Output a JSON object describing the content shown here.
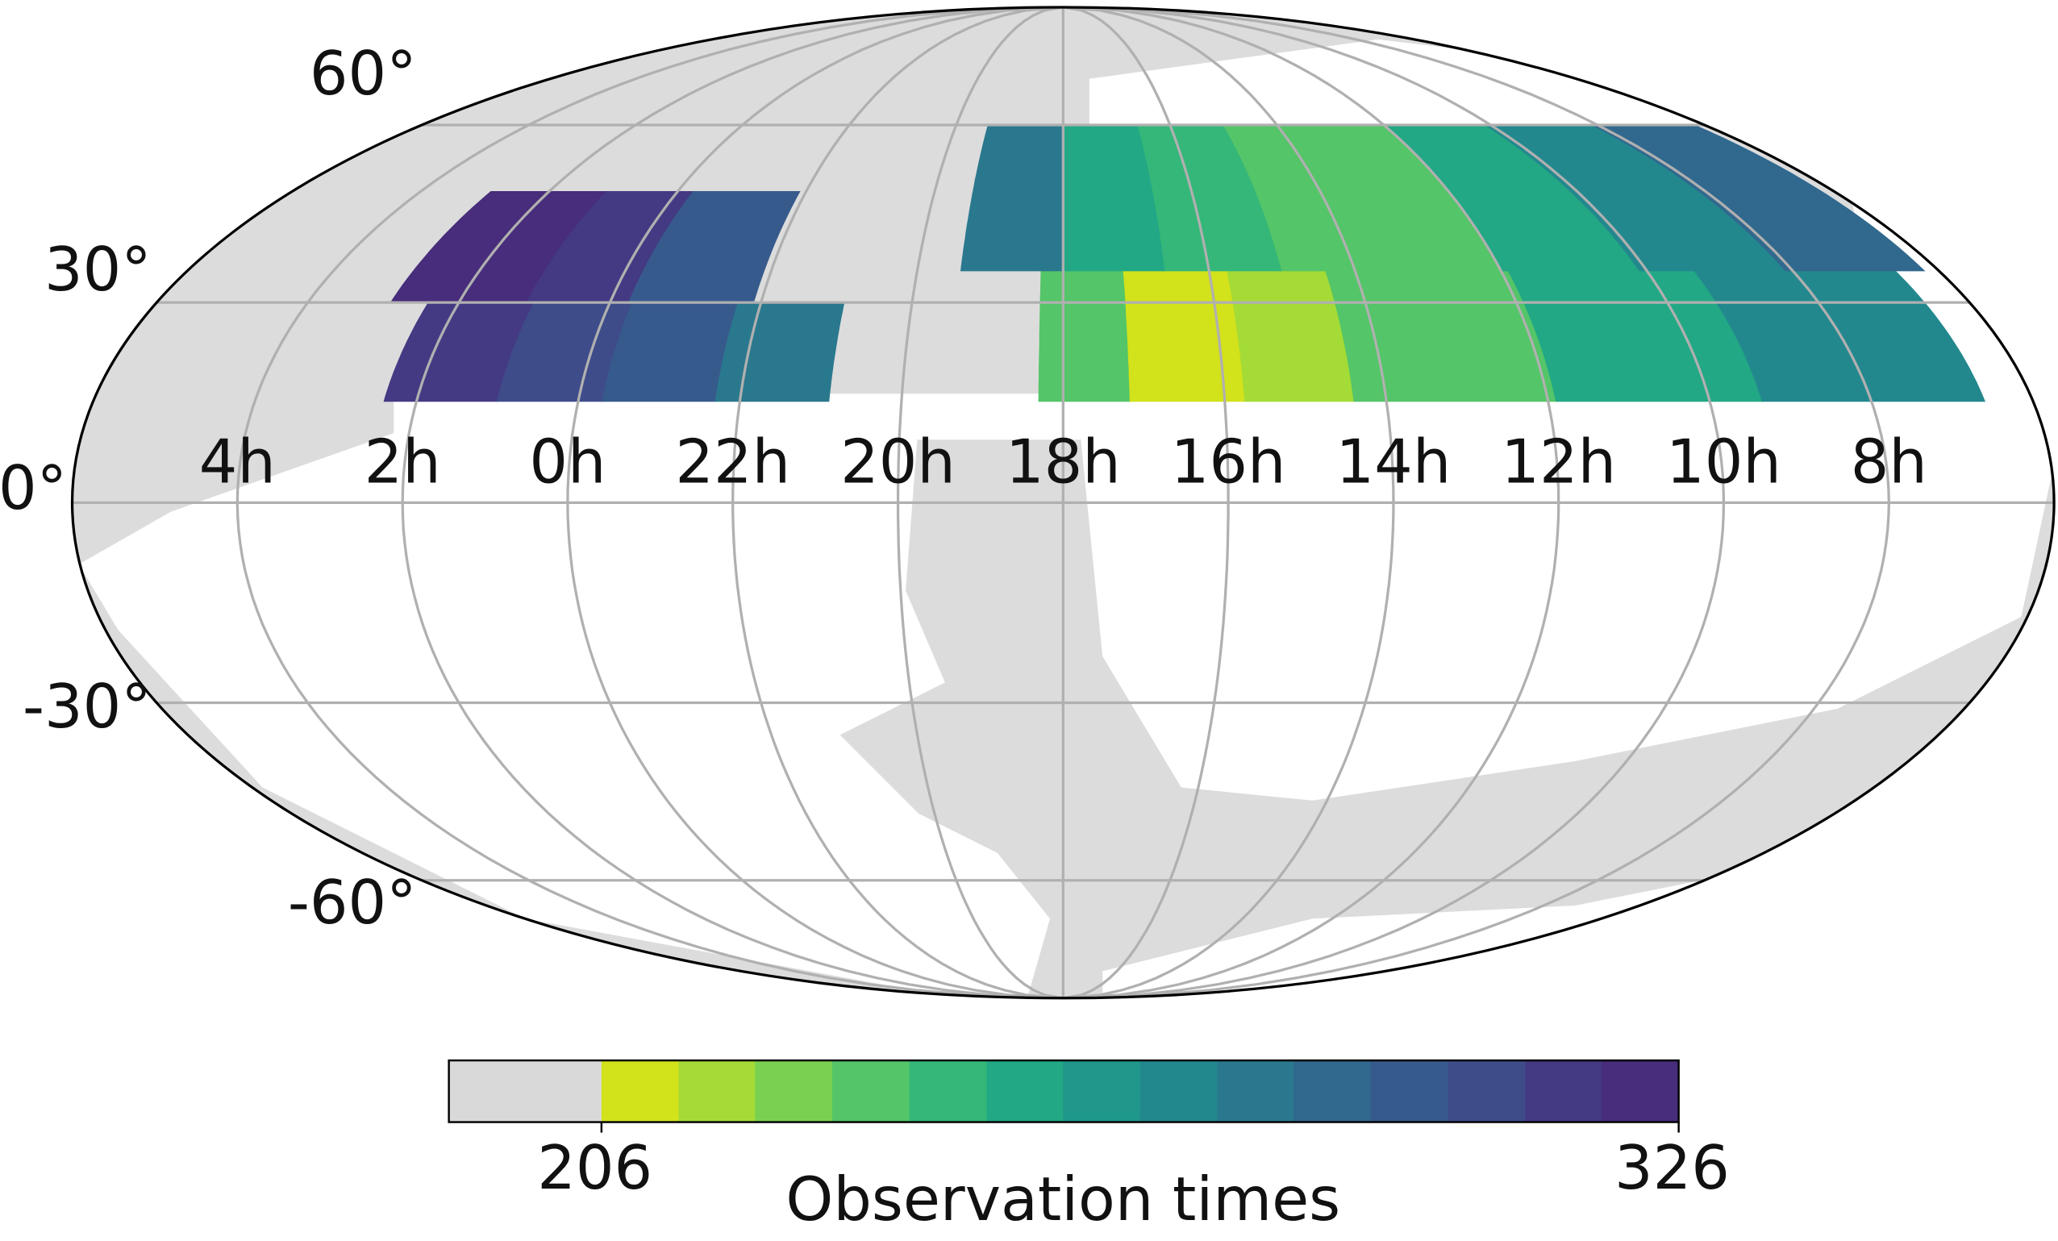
{
  "chart_data": {
    "type": "mollweide",
    "lat_labels": [
      {
        "value": 60,
        "label": "60°"
      },
      {
        "value": 30,
        "label": "30°"
      },
      {
        "value": 0,
        "label": "0°"
      },
      {
        "value": -30,
        "label": "-30°"
      },
      {
        "value": -60,
        "label": "-60°"
      }
    ],
    "ra_labels": [
      {
        "value": 4,
        "label": "4h"
      },
      {
        "value": 2,
        "label": "2h"
      },
      {
        "value": 0,
        "label": "0h"
      },
      {
        "value": 22,
        "label": "22h"
      },
      {
        "value": 20,
        "label": "20h"
      },
      {
        "value": 18,
        "label": "18h"
      },
      {
        "value": 16,
        "label": "16h"
      },
      {
        "value": 14,
        "label": "14h"
      },
      {
        "value": 12,
        "label": "12h"
      },
      {
        "value": 10,
        "label": "10h"
      },
      {
        "value": 8,
        "label": "8h"
      }
    ],
    "regions": [
      {
        "ra": [
          1,
          2.4
        ],
        "dec": [
          15,
          30
        ],
        "value": 316
      },
      {
        "ra": [
          0,
          1
        ],
        "dec": [
          15,
          30
        ],
        "value": 305
      },
      {
        "ra": [
          23.7,
          24
        ],
        "dec": [
          15,
          30
        ],
        "value": 305
      },
      {
        "ra": [
          22.3,
          23.7
        ],
        "dec": [
          15,
          30
        ],
        "value": 292
      },
      {
        "ra": [
          20.9,
          22.3
        ],
        "dec": [
          15,
          30
        ],
        "value": 283
      },
      {
        "ra": [
          1.1,
          2.9
        ],
        "dec": [
          30,
          48
        ],
        "value": 322
      },
      {
        "ra": [
          0,
          1.1
        ],
        "dec": [
          30,
          48
        ],
        "value": 310
      },
      {
        "ra": [
          23.75,
          24
        ],
        "dec": [
          30,
          48
        ],
        "value": 310
      },
      {
        "ra": [
          22.1,
          23.75
        ],
        "dec": [
          30,
          48
        ],
        "value": 293
      },
      {
        "ra": [
          17.17,
          18.3
        ],
        "dec": [
          15,
          35
        ],
        "value": 237
      },
      {
        "ra": [
          15.75,
          17.17
        ],
        "dec": [
          15,
          35
        ],
        "value": 210
      },
      {
        "ra": [
          14.4,
          15.75
        ],
        "dec": [
          15,
          35
        ],
        "value": 222
      },
      {
        "ra": [
          11.9,
          14.4
        ],
        "dec": [
          15,
          35
        ],
        "value": 232
      },
      {
        "ra": [
          9.35,
          11.9
        ],
        "dec": [
          15,
          35
        ],
        "value": 250
      },
      {
        "ra": [
          6.6,
          9.35
        ],
        "dec": [
          15,
          35
        ],
        "value": 270
      },
      {
        "ra": [
          18,
          19.4
        ],
        "dec": [
          35,
          60
        ],
        "value": 275
      },
      {
        "ra": [
          16.6,
          18
        ],
        "dec": [
          35,
          60
        ],
        "value": 255
      },
      {
        "ra": [
          15,
          16.6
        ],
        "dec": [
          35,
          60
        ],
        "value": 246
      },
      {
        "ra": [
          12,
          15
        ],
        "dec": [
          35,
          60
        ],
        "value": 238
      },
      {
        "ra": [
          10.1,
          12
        ],
        "dec": [
          35,
          60
        ],
        "value": 255
      },
      {
        "ra": [
          8.1,
          10.1
        ],
        "dec": [
          35,
          60
        ],
        "value": 272
      },
      {
        "ra": [
          6.2,
          8.1
        ],
        "dec": [
          35,
          60
        ],
        "value": 290
      }
    ],
    "colorbar": {
      "label": "Observation times",
      "lim": [
        189,
        326
      ],
      "ticks": [
        206,
        326
      ],
      "bins": [
        189,
        206,
        214.6,
        223.1,
        231.7,
        240.3,
        248.9,
        257.4,
        266,
        274.6,
        283.1,
        291.7,
        300.3,
        308.9,
        317.4,
        326
      ],
      "colors": [
        "#d9d9d9",
        "#d2e21b",
        "#a5db36",
        "#7ad151",
        "#54c568",
        "#35b779",
        "#22a884",
        "#1f988b",
        "#23888e",
        "#2a788e",
        "#31688e",
        "#375a8c",
        "#3e4c8a",
        "#443a83",
        "#472d7b"
      ]
    }
  }
}
